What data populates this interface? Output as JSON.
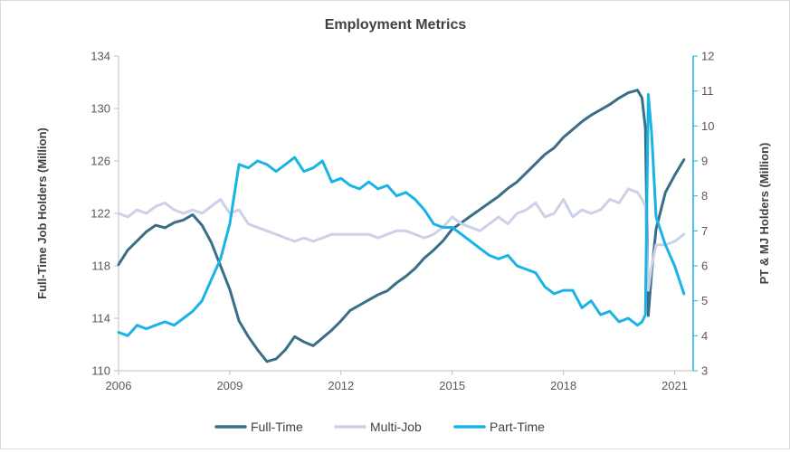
{
  "chart_data": {
    "type": "line",
    "title": "Employment Metrics",
    "ylabel_left": "Full-Time Job Holders (Million)",
    "ylabel_right": "PT & MJ Holders (Million)",
    "xlim": [
      2006,
      2021.5
    ],
    "ylim_left": [
      110,
      134
    ],
    "ylim_right": [
      3,
      12
    ],
    "x_ticks": [
      2006,
      2009,
      2012,
      2015,
      2018,
      2021
    ],
    "x_tick_labels": [
      "2006",
      "2009",
      "2012",
      "2015",
      "2018",
      "2021"
    ],
    "y_left_ticks": [
      110,
      114,
      118,
      122,
      126,
      130,
      134
    ],
    "y_left_tick_labels": [
      "110",
      "114",
      "118",
      "122",
      "126",
      "130",
      "134"
    ],
    "y_right_ticks": [
      3,
      4,
      5,
      6,
      7,
      8,
      9,
      10,
      11,
      12
    ],
    "y_right_tick_labels": [
      "3",
      "4",
      "5",
      "6",
      "7",
      "8",
      "9",
      "10",
      "11",
      "12"
    ],
    "grid": false,
    "legend_position": "bottom",
    "series": [
      {
        "name": "Full-Time",
        "axis": "left",
        "color": "#3a6e87",
        "x": [
          2006.0,
          2006.25,
          2006.5,
          2006.75,
          2007.0,
          2007.25,
          2007.5,
          2007.75,
          2008.0,
          2008.25,
          2008.5,
          2008.75,
          2009.0,
          2009.25,
          2009.5,
          2009.75,
          2010.0,
          2010.25,
          2010.5,
          2010.75,
          2011.0,
          2011.25,
          2011.5,
          2011.75,
          2012.0,
          2012.25,
          2012.5,
          2012.75,
          2013.0,
          2013.25,
          2013.5,
          2013.75,
          2014.0,
          2014.25,
          2014.5,
          2014.75,
          2015.0,
          2015.25,
          2015.5,
          2015.75,
          2016.0,
          2016.25,
          2016.5,
          2016.75,
          2017.0,
          2017.25,
          2017.5,
          2017.75,
          2018.0,
          2018.25,
          2018.5,
          2018.75,
          2019.0,
          2019.25,
          2019.5,
          2019.75,
          2020.0,
          2020.12,
          2020.21,
          2020.29,
          2020.38,
          2020.5,
          2020.75,
          2021.0,
          2021.25
        ],
        "y": [
          118.1,
          119.2,
          119.9,
          120.6,
          121.1,
          120.9,
          121.3,
          121.5,
          121.9,
          121.1,
          119.8,
          118.0,
          116.2,
          113.8,
          112.6,
          111.6,
          110.7,
          110.9,
          111.6,
          112.6,
          112.2,
          111.9,
          112.5,
          113.1,
          113.8,
          114.6,
          115.0,
          115.4,
          115.8,
          116.1,
          116.7,
          117.2,
          117.8,
          118.6,
          119.2,
          119.9,
          120.8,
          121.3,
          121.8,
          122.3,
          122.8,
          123.3,
          123.9,
          124.4,
          125.1,
          125.8,
          126.5,
          127.0,
          127.8,
          128.4,
          129.0,
          129.5,
          129.9,
          130.3,
          130.8,
          131.2,
          131.4,
          130.8,
          128.5,
          114.2,
          117.5,
          120.8,
          123.6,
          124.9,
          126.1
        ]
      },
      {
        "name": "Multi-Job",
        "axis": "right",
        "color": "#cdd1e8",
        "x": [
          2006.0,
          2006.25,
          2006.5,
          2006.75,
          2007.0,
          2007.25,
          2007.5,
          2007.75,
          2008.0,
          2008.25,
          2008.5,
          2008.75,
          2009.0,
          2009.25,
          2009.5,
          2009.75,
          2010.0,
          2010.25,
          2010.5,
          2010.75,
          2011.0,
          2011.25,
          2011.5,
          2011.75,
          2012.0,
          2012.25,
          2012.5,
          2012.75,
          2013.0,
          2013.25,
          2013.5,
          2013.75,
          2014.0,
          2014.25,
          2014.5,
          2014.75,
          2015.0,
          2015.25,
          2015.5,
          2015.75,
          2016.0,
          2016.25,
          2016.5,
          2016.75,
          2017.0,
          2017.25,
          2017.5,
          2017.75,
          2018.0,
          2018.25,
          2018.5,
          2018.75,
          2019.0,
          2019.25,
          2019.5,
          2019.75,
          2020.0,
          2020.12,
          2020.21,
          2020.29,
          2020.38,
          2020.5,
          2020.75,
          2021.0,
          2021.25
        ],
        "y": [
          7.5,
          7.4,
          7.6,
          7.5,
          7.7,
          7.8,
          7.6,
          7.5,
          7.6,
          7.5,
          7.7,
          7.9,
          7.5,
          7.6,
          7.2,
          7.1,
          7.0,
          6.9,
          6.8,
          6.7,
          6.8,
          6.7,
          6.8,
          6.9,
          6.9,
          6.9,
          6.9,
          6.9,
          6.8,
          6.9,
          7.0,
          7.0,
          6.9,
          6.8,
          6.9,
          7.1,
          7.4,
          7.2,
          7.1,
          7.0,
          7.2,
          7.4,
          7.2,
          7.5,
          7.6,
          7.8,
          7.4,
          7.5,
          7.9,
          7.4,
          7.6,
          7.5,
          7.6,
          7.9,
          7.8,
          8.2,
          8.1,
          7.9,
          7.7,
          5.3,
          6.0,
          6.6,
          6.6,
          6.7,
          6.9
        ]
      },
      {
        "name": "Part-Time",
        "axis": "right",
        "color": "#19b3e6",
        "x": [
          2006.0,
          2006.25,
          2006.5,
          2006.75,
          2007.0,
          2007.25,
          2007.5,
          2007.75,
          2008.0,
          2008.25,
          2008.5,
          2008.75,
          2009.0,
          2009.25,
          2009.5,
          2009.75,
          2010.0,
          2010.25,
          2010.5,
          2010.75,
          2011.0,
          2011.25,
          2011.5,
          2011.75,
          2012.0,
          2012.25,
          2012.5,
          2012.75,
          2013.0,
          2013.25,
          2013.5,
          2013.75,
          2014.0,
          2014.25,
          2014.5,
          2014.75,
          2015.0,
          2015.25,
          2015.5,
          2015.75,
          2016.0,
          2016.25,
          2016.5,
          2016.75,
          2017.0,
          2017.25,
          2017.5,
          2017.75,
          2018.0,
          2018.25,
          2018.5,
          2018.75,
          2019.0,
          2019.25,
          2019.5,
          2019.75,
          2020.0,
          2020.12,
          2020.21,
          2020.29,
          2020.38,
          2020.5,
          2020.75,
          2021.0,
          2021.25
        ],
        "y": [
          4.1,
          4.0,
          4.3,
          4.2,
          4.3,
          4.4,
          4.3,
          4.5,
          4.7,
          5.0,
          5.6,
          6.2,
          7.2,
          8.9,
          8.8,
          9.0,
          8.9,
          8.7,
          8.9,
          9.1,
          8.7,
          8.8,
          9.0,
          8.4,
          8.5,
          8.3,
          8.2,
          8.4,
          8.2,
          8.3,
          8.0,
          8.1,
          7.9,
          7.6,
          7.2,
          7.1,
          7.1,
          6.9,
          6.7,
          6.5,
          6.3,
          6.2,
          6.3,
          6.0,
          5.9,
          5.8,
          5.4,
          5.2,
          5.3,
          5.3,
          4.8,
          5.0,
          4.6,
          4.7,
          4.4,
          4.5,
          4.3,
          4.4,
          4.6,
          10.9,
          9.8,
          7.4,
          6.6,
          6.0,
          5.2
        ]
      }
    ]
  }
}
